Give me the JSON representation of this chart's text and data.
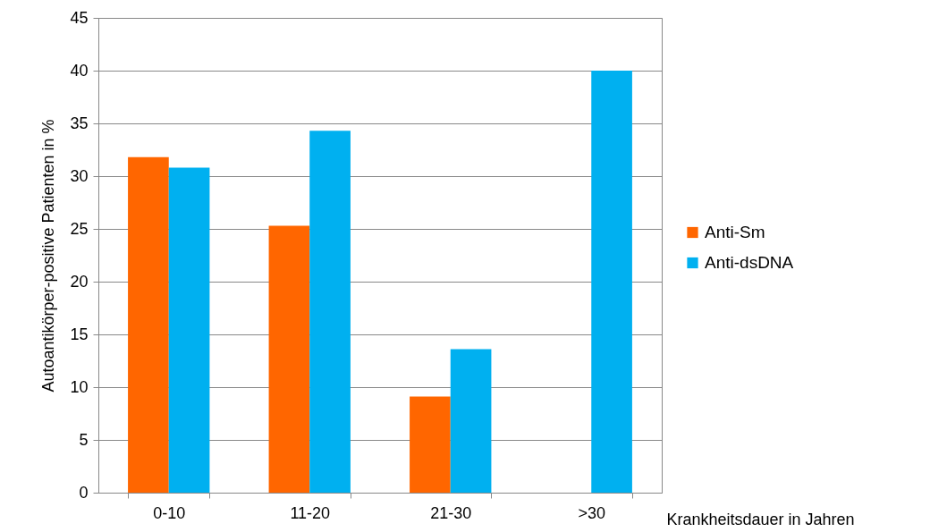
{
  "chart_data": {
    "type": "bar",
    "xlabel": "Krankheitsdauer in Jahren",
    "ylabel": "Autoantikörper-positive Patienten in %",
    "categories": [
      "0-10",
      "11-20",
      "21-30",
      ">30"
    ],
    "series": [
      {
        "name": "Anti-Sm",
        "color": "#ff6600",
        "values": [
          31.8,
          25.3,
          9.1,
          0
        ]
      },
      {
        "name": "Anti-dsDNA",
        "color": "#00b0f0",
        "values": [
          30.8,
          34.3,
          13.6,
          40.0
        ]
      }
    ],
    "ylim": [
      0,
      45
    ],
    "yticks": [
      0,
      5,
      10,
      15,
      20,
      25,
      30,
      35,
      40,
      45
    ],
    "grid": "y",
    "legend": "right"
  }
}
